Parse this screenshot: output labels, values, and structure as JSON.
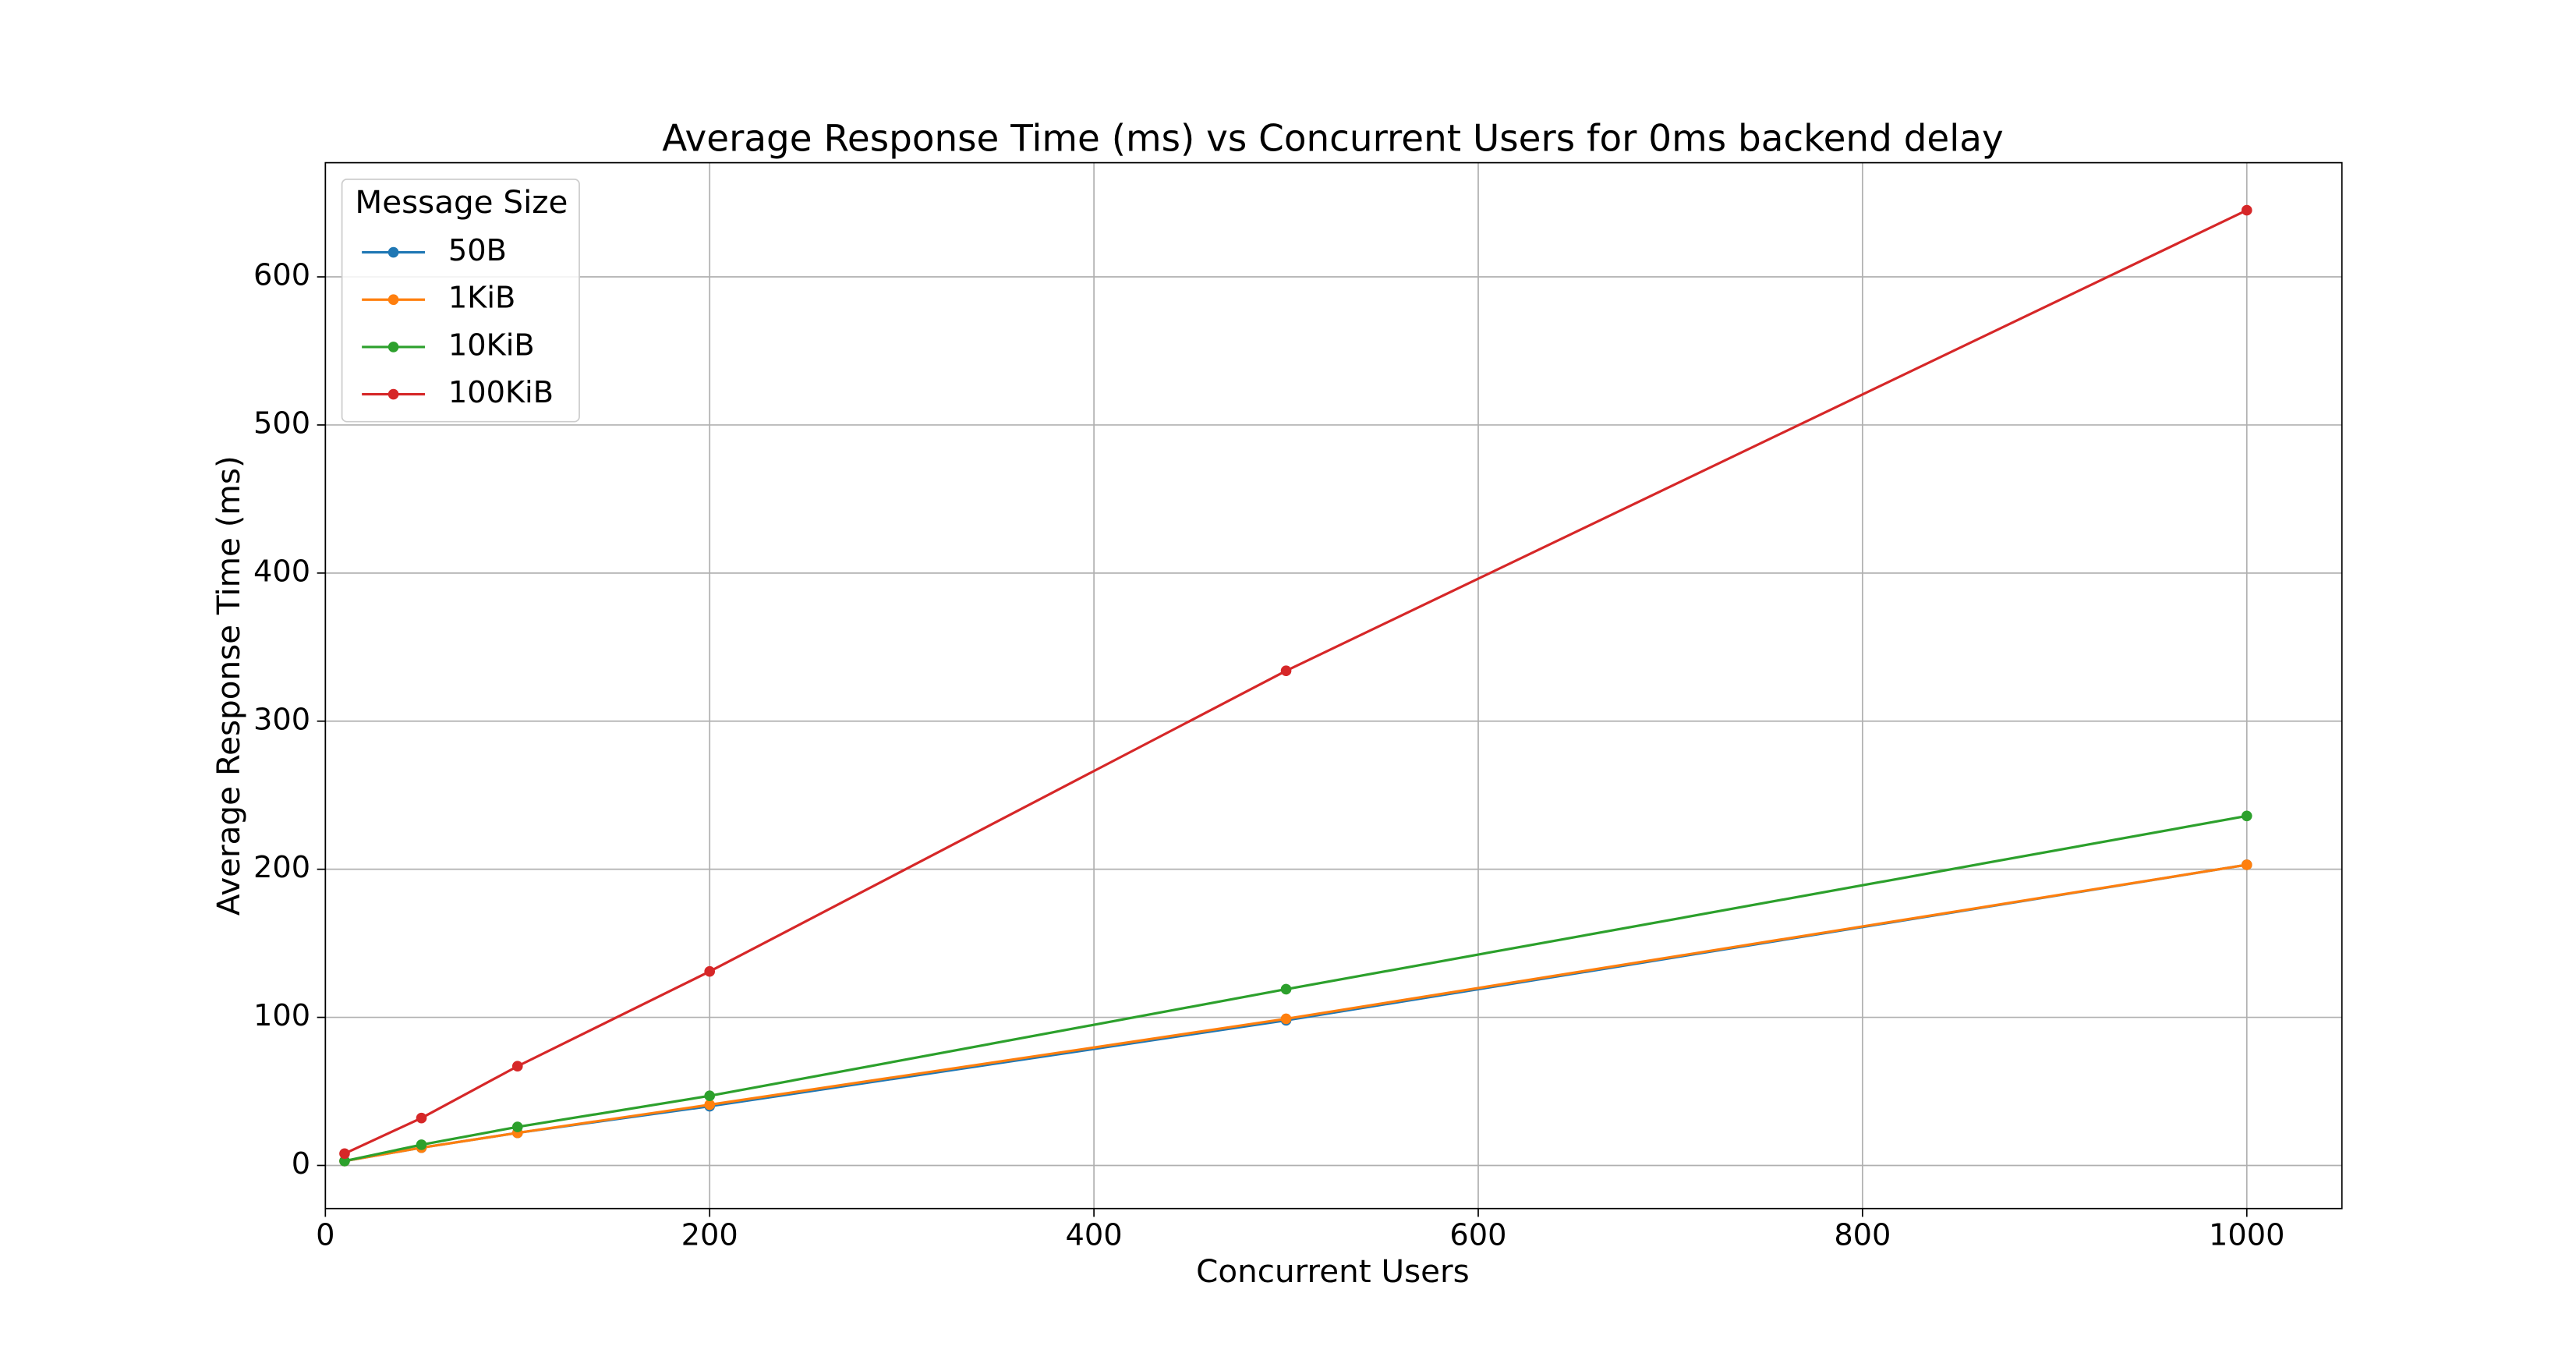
{
  "chart_data": {
    "type": "line",
    "title": "Average Response Time (ms) vs Concurrent Users for 0ms backend delay",
    "x_label": "Concurrent Users",
    "y_label": "Average Response Time (ms)",
    "x": [
      10,
      50,
      100,
      200,
      500,
      1000
    ],
    "series": [
      {
        "name": "50B",
        "color": "#1f77b4",
        "values": [
          3,
          12,
          22,
          40,
          98,
          203
        ]
      },
      {
        "name": "1KiB",
        "color": "#ff7f0e",
        "values": [
          3,
          12,
          22,
          41,
          99,
          203
        ]
      },
      {
        "name": "10KiB",
        "color": "#2ca02c",
        "values": [
          3,
          14,
          26,
          47,
          119,
          236
        ]
      },
      {
        "name": "100KiB",
        "color": "#d62728",
        "values": [
          8,
          32,
          67,
          131,
          334,
          645
        ]
      }
    ],
    "xlim": [
      0,
      1049.5
    ],
    "ylim": [
      -29.1,
      677.1
    ],
    "xticks": [
      0,
      200,
      400,
      600,
      800,
      1000
    ],
    "yticks": [
      0,
      100,
      200,
      300,
      400,
      500,
      600
    ],
    "grid": true,
    "legend_title": "Message Size",
    "legend_position": "upper-left"
  }
}
